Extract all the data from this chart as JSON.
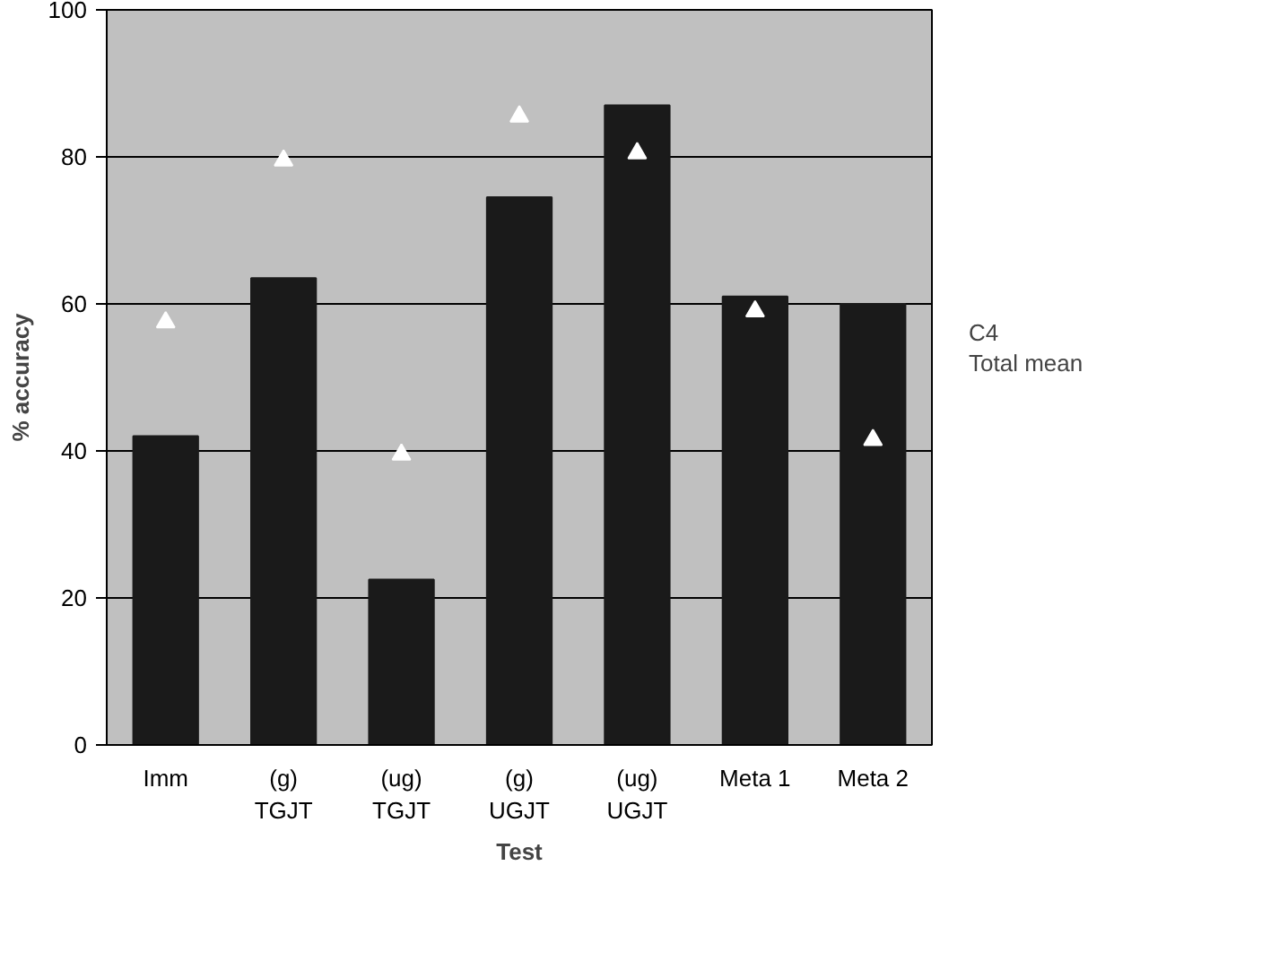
{
  "chart_data": {
    "type": "bar",
    "xlabel": "Test",
    "ylabel": "% accuracy",
    "categories": [
      "Imm",
      "(g)\nTGJT",
      "(ug)\nTGJT",
      "(g)\nUGJT",
      "(ug)\nUGJT",
      "Meta 1",
      "Meta 2"
    ],
    "series": [
      {
        "name": "C4",
        "color": "#1a1a1a",
        "values": [
          42,
          63.5,
          22.5,
          74.5,
          87,
          61,
          60
        ]
      },
      {
        "name": "Total mean",
        "type": "scatter",
        "marker": "triangle",
        "color": "#ffffff",
        "values": [
          57.5,
          79.5,
          39.5,
          85.5,
          80.5,
          59,
          41.5
        ]
      }
    ],
    "ylim": [
      0,
      100
    ],
    "yticks": [
      0,
      20,
      40,
      60,
      80,
      100
    ],
    "grid": "y",
    "legend": "right"
  }
}
